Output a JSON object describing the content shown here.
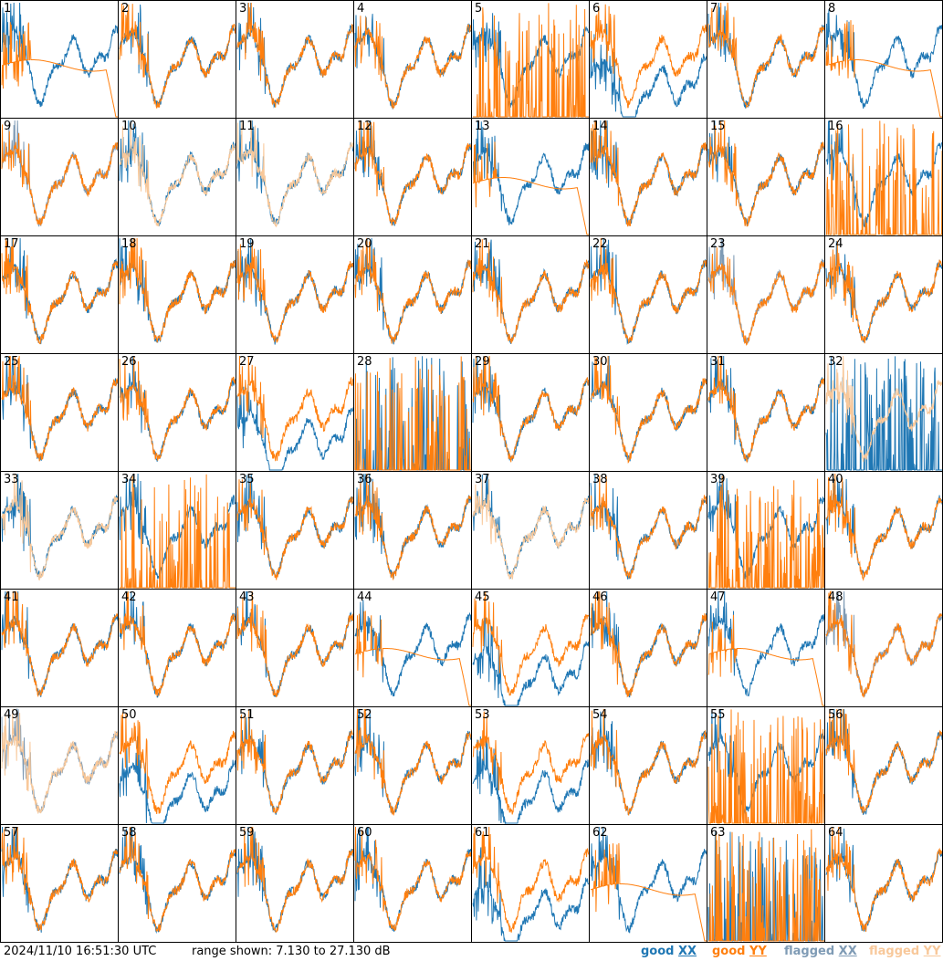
{
  "chart_data": {
    "type": "line",
    "layout": "8x8 small multiples",
    "panel_labels": [
      "1",
      "2",
      "3",
      "4",
      "5",
      "6",
      "7",
      "8",
      "9",
      "10",
      "11",
      "12",
      "13",
      "14",
      "15",
      "16",
      "17",
      "18",
      "19",
      "20",
      "21",
      "22",
      "23",
      "24",
      "25",
      "26",
      "27",
      "28",
      "29",
      "30",
      "31",
      "32",
      "33",
      "34",
      "35",
      "36",
      "37",
      "38",
      "39",
      "40",
      "41",
      "42",
      "43",
      "44",
      "45",
      "46",
      "47",
      "48",
      "49",
      "50",
      "51",
      "52",
      "53",
      "54",
      "55",
      "56",
      "57",
      "58",
      "59",
      "60",
      "61",
      "62",
      "63",
      "64"
    ],
    "ylim_db": [
      7.13,
      27.13
    ],
    "series_colors": {
      "good_xx": "#1f77b4",
      "good_yy": "#ff7f0e",
      "flagged_xx": "#7f9bb5",
      "flagged_yy": "#f8c89a"
    },
    "flagged_xx_panels": [
      9,
      23,
      48,
      49
    ],
    "flagged_yy_panels": [
      10,
      11,
      32,
      33,
      37,
      49
    ],
    "grid": false
  },
  "footer": {
    "timestamp": "2024/11/10 16:51:30 UTC",
    "range": "range shown: 7.130 to 27.130 dB",
    "legend": [
      {
        "prefix": "good ",
        "pol": "XX",
        "color": "#1f77b4"
      },
      {
        "prefix": "good ",
        "pol": "YY",
        "color": "#ff7f0e"
      },
      {
        "prefix": "flagged ",
        "pol": "XX",
        "color": "#7f9bb5"
      },
      {
        "prefix": "flagged ",
        "pol": "YY",
        "color": "#f8c89a"
      }
    ]
  }
}
